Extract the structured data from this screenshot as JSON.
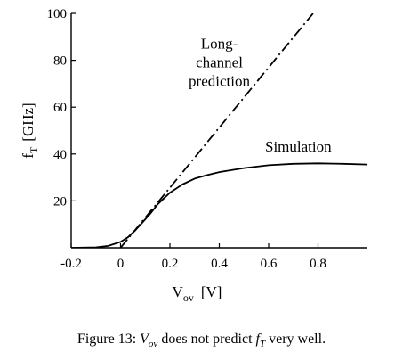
{
  "chart_data": {
    "type": "line",
    "xlabel": {
      "main": "V",
      "sub": "ov",
      "unit": "[V]"
    },
    "ylabel": {
      "main": "f",
      "sub": "T",
      "unit": "[GHz]"
    },
    "xlim": [
      -0.2,
      1.0
    ],
    "ylim": [
      0,
      100
    ],
    "xticks": [
      -0.2,
      0,
      0.2,
      0.4,
      0.6,
      0.8
    ],
    "xtick_labels": [
      "-0.2",
      "0",
      "0.2",
      "0.4",
      "0.6",
      "0.8"
    ],
    "yticks": [
      20,
      40,
      60,
      80,
      100
    ],
    "ytick_labels": [
      "20",
      "40",
      "60",
      "80",
      "100"
    ],
    "grid": false,
    "series": [
      {
        "name": "Simulation",
        "style": "solid",
        "color": "#000000",
        "x": [
          -0.2,
          -0.1,
          -0.05,
          0,
          0.03,
          0.06,
          0.09,
          0.12,
          0.15,
          0.2,
          0.25,
          0.3,
          0.35,
          0.4,
          0.5,
          0.6,
          0.7,
          0.8,
          0.9,
          1.0
        ],
        "y": [
          0,
          0.2,
          0.8,
          2.5,
          4.5,
          7.5,
          11,
          14.5,
          18.5,
          23.5,
          27,
          29.5,
          31,
          32.3,
          34,
          35.2,
          35.8,
          36,
          35.8,
          35.5
        ]
      },
      {
        "name": "Long-channel prediction",
        "style": "dashdot",
        "color": "#000000",
        "x": [
          0,
          0.78
        ],
        "y": [
          0,
          100
        ]
      }
    ],
    "annotations": [
      {
        "lines": [
          "Long-",
          "channel",
          "prediction"
        ],
        "x": 0.4,
        "y": 85
      },
      {
        "lines": [
          "Simulation"
        ],
        "x": 0.72,
        "y": 41
      }
    ]
  },
  "caption": {
    "prefix": "Figure 13:",
    "var1_main": "V",
    "var1_sub": "ov",
    "middle": "does not predict",
    "var2_main": "f",
    "var2_sub": "T",
    "suffix": "very well."
  }
}
